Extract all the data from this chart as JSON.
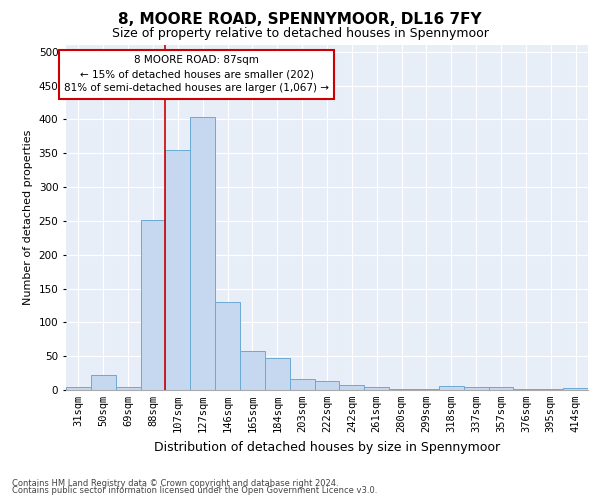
{
  "title1": "8, MOORE ROAD, SPENNYMOOR, DL16 7FY",
  "title2": "Size of property relative to detached houses in Spennymoor",
  "xlabel": "Distribution of detached houses by size in Spennymoor",
  "ylabel": "Number of detached properties",
  "footnote1": "Contains HM Land Registry data © Crown copyright and database right 2024.",
  "footnote2": "Contains public sector information licensed under the Open Government Licence v3.0.",
  "categories": [
    "31sqm",
    "50sqm",
    "69sqm",
    "88sqm",
    "107sqm",
    "127sqm",
    "146sqm",
    "165sqm",
    "184sqm",
    "203sqm",
    "222sqm",
    "242sqm",
    "261sqm",
    "280sqm",
    "299sqm",
    "318sqm",
    "337sqm",
    "357sqm",
    "376sqm",
    "395sqm",
    "414sqm"
  ],
  "values": [
    5,
    22,
    5,
    252,
    355,
    403,
    130,
    58,
    48,
    17,
    14,
    8,
    5,
    2,
    2,
    6,
    5,
    5,
    2,
    1,
    3
  ],
  "bar_color": "#c5d8f0",
  "bar_edge_color": "#6aaad4",
  "vline_x": 3.5,
  "vline_color": "#cc0000",
  "annotation_text": "8 MOORE ROAD: 87sqm\n← 15% of detached houses are smaller (202)\n81% of semi-detached houses are larger (1,067) →",
  "annotation_box_color": "#ffffff",
  "annotation_box_edge": "#cc0000",
  "ylim": [
    0,
    510
  ],
  "yticks": [
    0,
    50,
    100,
    150,
    200,
    250,
    300,
    350,
    400,
    450,
    500
  ],
  "background_color": "#e8eef8",
  "grid_color": "#ffffff",
  "title1_fontsize": 11,
  "title2_fontsize": 9,
  "xlabel_fontsize": 9,
  "ylabel_fontsize": 8,
  "tick_fontsize": 7.5,
  "annotation_fontsize": 7.5,
  "footnote_fontsize": 6
}
